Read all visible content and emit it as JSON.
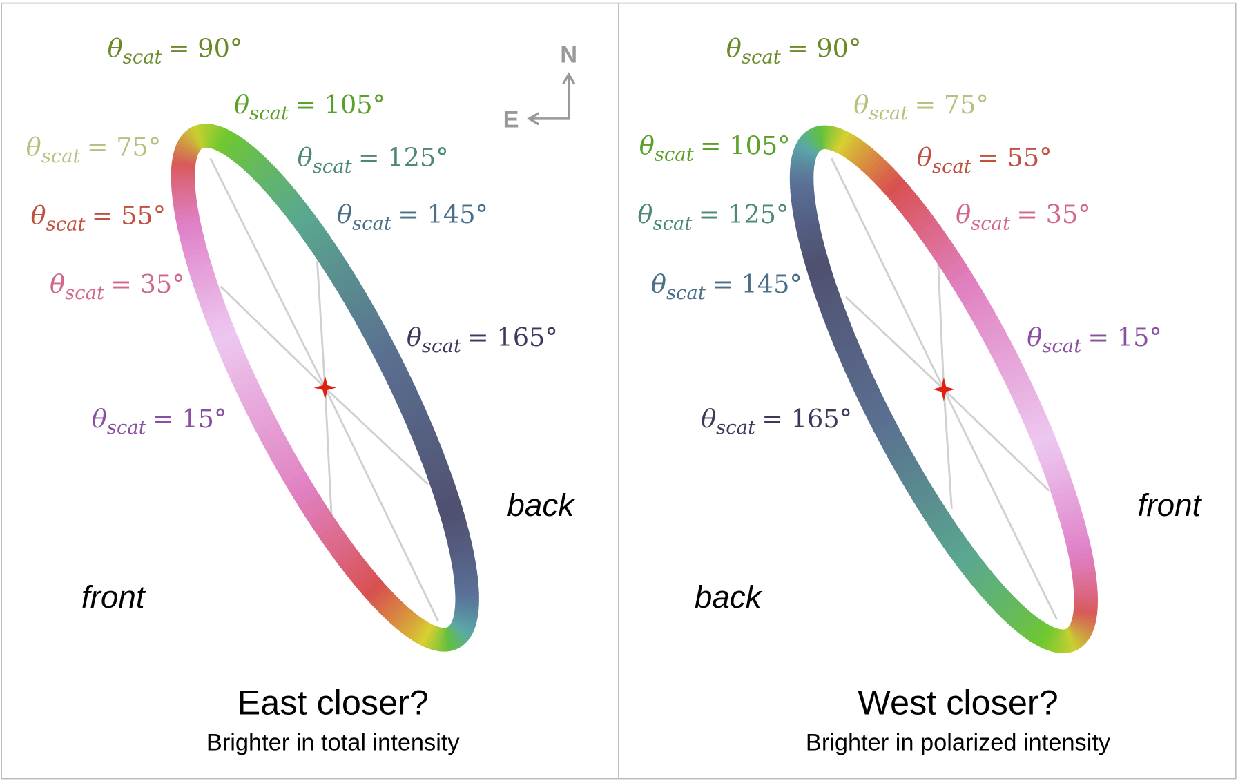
{
  "compass": {
    "north": "N",
    "east": "E"
  },
  "panels": [
    {
      "title": "East closer?",
      "subtitle": "Brighter in total intensity",
      "near_label": "front",
      "far_label": "back",
      "labels": [
        {
          "symbol": "θ",
          "sub": "scat",
          "rest": "= 90°",
          "color": "#6a8a2a"
        },
        {
          "symbol": "θ",
          "sub": "scat",
          "rest": "= 105°",
          "color": "#5aa02a"
        },
        {
          "symbol": "θ",
          "sub": "scat",
          "rest": "= 75°",
          "color": "#b8c080"
        },
        {
          "symbol": "θ",
          "sub": "scat",
          "rest": "= 125°",
          "color": "#4a8a70"
        },
        {
          "symbol": "θ",
          "sub": "scat",
          "rest": "= 55°",
          "color": "#c05040"
        },
        {
          "symbol": "θ",
          "sub": "scat",
          "rest": "= 145°",
          "color": "#4a7088"
        },
        {
          "symbol": "θ",
          "sub": "scat",
          "rest": "= 35°",
          "color": "#d06888"
        },
        {
          "symbol": "θ",
          "sub": "scat",
          "rest": "= 165°",
          "color": "#3a3a5a"
        },
        {
          "symbol": "θ",
          "sub": "scat",
          "rest": "= 15°",
          "color": "#8a50a0"
        }
      ]
    },
    {
      "title": "West closer?",
      "subtitle": "Brighter in polarized intensity",
      "near_label": "front",
      "far_label": "back",
      "labels": [
        {
          "symbol": "θ",
          "sub": "scat",
          "rest": "= 90°",
          "color": "#6a8a2a"
        },
        {
          "symbol": "θ",
          "sub": "scat",
          "rest": "= 75°",
          "color": "#b8c080"
        },
        {
          "symbol": "θ",
          "sub": "scat",
          "rest": "= 105°",
          "color": "#5aa02a"
        },
        {
          "symbol": "θ",
          "sub": "scat",
          "rest": "= 55°",
          "color": "#c05040"
        },
        {
          "symbol": "θ",
          "sub": "scat",
          "rest": "= 125°",
          "color": "#4a8a70"
        },
        {
          "symbol": "θ",
          "sub": "scat",
          "rest": "= 35°",
          "color": "#d06888"
        },
        {
          "symbol": "θ",
          "sub": "scat",
          "rest": "= 145°",
          "color": "#4a7088"
        },
        {
          "symbol": "θ",
          "sub": "scat",
          "rest": "= 15°",
          "color": "#8a50a0"
        },
        {
          "symbol": "θ",
          "sub": "scat",
          "rest": "= 165°",
          "color": "#3a3a5a"
        }
      ]
    }
  ]
}
